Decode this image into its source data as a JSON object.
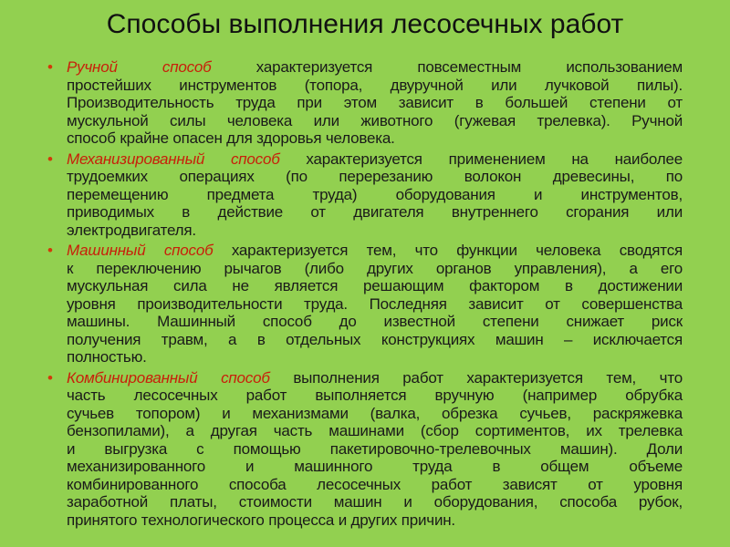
{
  "title": "Способы выполнения лесосечных работ",
  "colors": {
    "background": "#92d050",
    "highlight": "#c8200a",
    "bullet": "#d23a0a"
  },
  "items": [
    {
      "highlight": "Ручной способ",
      "lines": [
        " характеризуется повсеместным использованием",
        "простейших инструментов (топора, двуручной или лучковой пилы).",
        "Производительность труда при этом зависит в большей степени от",
        "мускульной силы человека или животного (гужевая трелевка). Ручной",
        "способ крайне опасен для здоровья человека."
      ]
    },
    {
      "highlight": "Механизированный способ",
      "lines": [
        " характеризуется применением на наиболее",
        "трудоемких операциях (по перерезанию волокон древесины, по",
        "перемещению предмета труда) оборудования и инструментов,",
        "приводимых в действие от двигателя внутреннего сгорания или",
        "электродвигателя."
      ]
    },
    {
      "highlight": "Машинный способ",
      "lines": [
        " характеризуется тем, что функции человека сводятся",
        "к переключению рычагов (либо других органов управления), а его",
        "мускульная сила не является решающим фактором в достижении",
        "уровня производительности труда. Последняя зависит от совершенства",
        "машины. Машинный способ до известной степени снижает риск",
        "получения травм, а в отдельных конструкциях машин – исключается",
        "полностью."
      ]
    },
    {
      "highlight": "Комбинированный способ",
      "lines": [
        " выполнения работ характеризуется тем, что",
        "часть лесосечных работ выполняется вручную (например обрубка",
        "сучьев топором) и механизмами (валка, обрезка сучьев, раскряжевка",
        "бензопилами), а другая часть машинами (сбор сортиментов, их трелевка",
        "и выгрузка с помощью пакетировочно-трелевочных машин). Доли",
        "механизированного и машинного труда в общем объеме",
        "комбинированного способа лесосечных работ зависят от уровня",
        "заработной платы, стоимости машин и оборудования, способа рубок,",
        "принятого технологического процесса и других причин."
      ]
    }
  ]
}
